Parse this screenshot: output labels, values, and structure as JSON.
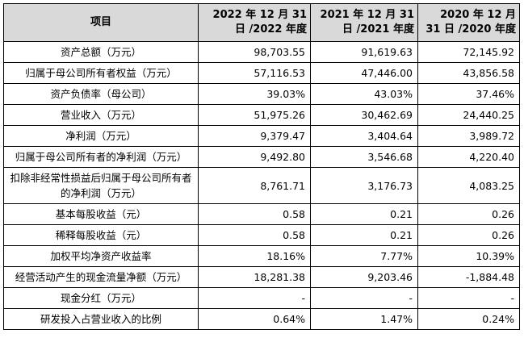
{
  "header": {
    "item": "项目",
    "col2022": "2022 年 12 月 31 日 /2022 年度",
    "col2021": "2021 年 12 月 31 日 /2021 年度",
    "col2020": "2020 年 12 月 31 日 /2020 年度"
  },
  "rows": [
    {
      "label": "资产总额（万元）",
      "v2022": "98,703.55",
      "v2021": "91,619.63",
      "v2020": "72,145.92"
    },
    {
      "label": "归属于母公司所有者权益（万元）",
      "v2022": "57,116.53",
      "v2021": "47,446.00",
      "v2020": "43,856.58"
    },
    {
      "label": "资产负债率（母公司）",
      "v2022": "39.03%",
      "v2021": "43.03%",
      "v2020": "37.46%"
    },
    {
      "label": "营业收入（万元）",
      "v2022": "51,975.26",
      "v2021": "30,462.69",
      "v2020": "24,440.25"
    },
    {
      "label": "净利润（万元）",
      "v2022": "9,379.47",
      "v2021": "3,404.64",
      "v2020": "3,989.72"
    },
    {
      "label": "归属于母公司所有者的净利润（万元）",
      "v2022": "9,492.80",
      "v2021": "3,546.68",
      "v2020": "4,220.40"
    },
    {
      "label": "扣除非经常性损益后归属于母公司所有者的净利润（万元）",
      "v2022": "8,761.71",
      "v2021": "3,176.73",
      "v2020": "4,083.25"
    },
    {
      "label": "基本每股收益（元）",
      "v2022": "0.58",
      "v2021": "0.21",
      "v2020": "0.26"
    },
    {
      "label": "稀释每股收益（元）",
      "v2022": "0.58",
      "v2021": "0.21",
      "v2020": "0.26"
    },
    {
      "label": "加权平均净资产收益率",
      "v2022": "18.16%",
      "v2021": "7.77%",
      "v2020": "10.39%"
    },
    {
      "label": "经营活动产生的现金流量净额（万元）",
      "v2022": "18,281.38",
      "v2021": "9,203.46",
      "v2020": "-1,884.48"
    },
    {
      "label": "现金分红（万元）",
      "v2022": "-",
      "v2021": "-",
      "v2020": "-"
    },
    {
      "label": "研发投入占营业收入的比例",
      "v2022": "0.64%",
      "v2021": "1.47%",
      "v2020": "0.24%"
    }
  ]
}
